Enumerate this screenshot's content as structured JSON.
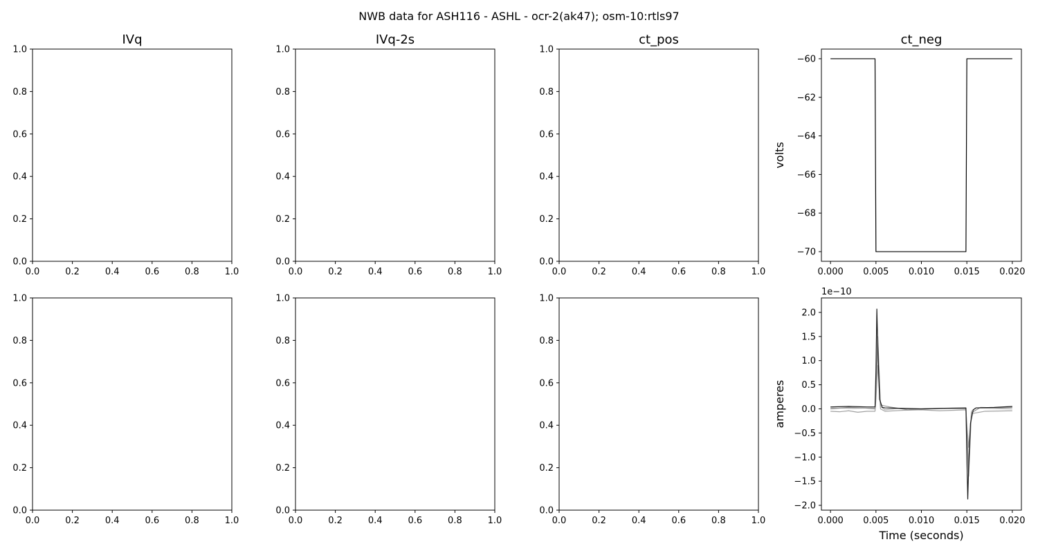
{
  "figure": {
    "suptitle": "NWB data for ASH116 - ASHL - ocr-2(ak47); osm-10:rtls97"
  },
  "chart_data": [
    {
      "id": "p00",
      "type": "line",
      "title": "IVq",
      "xlabel": "",
      "ylabel": "",
      "xlim": [
        0,
        1
      ],
      "ylim": [
        0,
        1
      ],
      "xticks": [
        "0.0",
        "0.2",
        "0.4",
        "0.6",
        "0.8",
        "1.0"
      ],
      "yticks": [
        "0.0",
        "0.2",
        "0.4",
        "0.6",
        "0.8",
        "1.0"
      ],
      "series": []
    },
    {
      "id": "p01",
      "type": "line",
      "title": "IVq-2s",
      "xlabel": "",
      "ylabel": "",
      "xlim": [
        0,
        1
      ],
      "ylim": [
        0,
        1
      ],
      "xticks": [
        "0.0",
        "0.2",
        "0.4",
        "0.6",
        "0.8",
        "1.0"
      ],
      "yticks": [
        "0.0",
        "0.2",
        "0.4",
        "0.6",
        "0.8",
        "1.0"
      ],
      "series": []
    },
    {
      "id": "p02",
      "type": "line",
      "title": "ct_pos",
      "xlabel": "",
      "ylabel": "",
      "xlim": [
        0,
        1
      ],
      "ylim": [
        0,
        1
      ],
      "xticks": [
        "0.0",
        "0.2",
        "0.4",
        "0.6",
        "0.8",
        "1.0"
      ],
      "yticks": [
        "0.0",
        "0.2",
        "0.4",
        "0.6",
        "0.8",
        "1.0"
      ],
      "series": []
    },
    {
      "id": "p03",
      "type": "line",
      "title": "ct_neg",
      "xlabel": "",
      "ylabel": "volts",
      "xlim": [
        -0.001,
        0.021
      ],
      "ylim": [
        -70.5,
        -59.5
      ],
      "xticks": [
        "0.000",
        "0.005",
        "0.010",
        "0.015",
        "0.020"
      ],
      "xtick_values": [
        0,
        0.005,
        0.01,
        0.015,
        0.02
      ],
      "yticks": [
        "−60",
        "−62",
        "−64",
        "−66",
        "−68",
        "−70"
      ],
      "ytick_values": [
        -60,
        -62,
        -64,
        -66,
        -68,
        -70
      ],
      "series": [
        {
          "color": "#000000",
          "x": [
            0,
            0.0049,
            0.005,
            0.0149,
            0.015,
            0.02
          ],
          "y": [
            -60,
            -60,
            -70,
            -70,
            -60,
            -60
          ]
        }
      ]
    },
    {
      "id": "p10",
      "type": "line",
      "title": "",
      "xlabel": "",
      "ylabel": "",
      "xlim": [
        0,
        1
      ],
      "ylim": [
        0,
        1
      ],
      "xticks": [
        "0.0",
        "0.2",
        "0.4",
        "0.6",
        "0.8",
        "1.0"
      ],
      "yticks": [
        "0.0",
        "0.2",
        "0.4",
        "0.6",
        "0.8",
        "1.0"
      ],
      "series": []
    },
    {
      "id": "p11",
      "type": "line",
      "title": "",
      "xlabel": "",
      "ylabel": "",
      "xlim": [
        0,
        1
      ],
      "ylim": [
        0,
        1
      ],
      "xticks": [
        "0.0",
        "0.2",
        "0.4",
        "0.6",
        "0.8",
        "1.0"
      ],
      "yticks": [
        "0.0",
        "0.2",
        "0.4",
        "0.6",
        "0.8",
        "1.0"
      ],
      "series": []
    },
    {
      "id": "p12",
      "type": "line",
      "title": "",
      "xlabel": "",
      "ylabel": "",
      "xlim": [
        0,
        1
      ],
      "ylim": [
        0,
        1
      ],
      "xticks": [
        "0.0",
        "0.2",
        "0.4",
        "0.6",
        "0.8",
        "1.0"
      ],
      "yticks": [
        "0.0",
        "0.2",
        "0.4",
        "0.6",
        "0.8",
        "1.0"
      ],
      "series": []
    },
    {
      "id": "p13",
      "type": "line",
      "title": "",
      "xlabel": "Time (seconds)",
      "ylabel": "amperes",
      "offset_text": "1e−10",
      "xlim": [
        -0.001,
        0.021
      ],
      "ylim": [
        -2.1,
        2.3
      ],
      "xticks": [
        "0.000",
        "0.005",
        "0.010",
        "0.015",
        "0.020"
      ],
      "xtick_values": [
        0,
        0.005,
        0.01,
        0.015,
        0.02
      ],
      "yticks": [
        "2.0",
        "1.5",
        "1.0",
        "0.5",
        "0.0",
        "−0.5",
        "−1.0",
        "−1.5",
        "−2.0"
      ],
      "ytick_values": [
        2.0,
        1.5,
        1.0,
        0.5,
        0.0,
        -0.5,
        -1.0,
        -1.5,
        -2.0
      ],
      "series": [
        {
          "color": "#b0b0b0",
          "x": [
            0,
            0.0025,
            0.0049,
            0.005,
            0.0052,
            0.0055,
            0.006,
            0.0075,
            0.01,
            0.0125,
            0.0149,
            0.015,
            0.0152,
            0.0155,
            0.016,
            0.0175,
            0.02
          ],
          "y": [
            0.02,
            0.01,
            0.02,
            0.3,
            1.2,
            0.05,
            -0.02,
            0.01,
            -0.01,
            0.01,
            0.0,
            -0.4,
            -1.1,
            -0.05,
            0.02,
            0.01,
            0.0
          ]
        },
        {
          "color": "#a0a0a0",
          "x": [
            0,
            0.001,
            0.002,
            0.003,
            0.004,
            0.0049,
            0.005,
            0.0052,
            0.0055,
            0.006,
            0.008,
            0.01,
            0.012,
            0.0149,
            0.015,
            0.0152,
            0.0155,
            0.017,
            0.02
          ],
          "y": [
            -0.05,
            -0.06,
            -0.04,
            -0.07,
            -0.05,
            -0.05,
            0.2,
            0.9,
            0.0,
            -0.05,
            -0.03,
            -0.02,
            -0.04,
            -0.02,
            -0.3,
            -0.8,
            -0.1,
            -0.05,
            -0.04
          ]
        },
        {
          "color": "#909090",
          "x": [
            0,
            0.002,
            0.0035,
            0.0049,
            0.005,
            0.0052,
            0.0055,
            0.0065,
            0.0085,
            0.01,
            0.0125,
            0.0149,
            0.015,
            0.0152,
            0.0155,
            0.0165,
            0.0185,
            0.02
          ],
          "y": [
            0.0,
            0.03,
            0.02,
            0.0,
            0.4,
            1.5,
            0.08,
            0.04,
            -0.02,
            0.0,
            0.01,
            0.01,
            -0.5,
            -1.4,
            -0.08,
            0.03,
            0.02,
            0.03
          ]
        },
        {
          "color": "#1a1a1a",
          "x": [
            0,
            0.002,
            0.004,
            0.0049,
            0.005,
            0.0051,
            0.0052,
            0.0054,
            0.0057,
            0.006,
            0.008,
            0.01,
            0.012,
            0.0149,
            0.015,
            0.0151,
            0.0152,
            0.0154,
            0.0157,
            0.016,
            0.018,
            0.02
          ],
          "y": [
            0.04,
            0.05,
            0.04,
            0.04,
            0.8,
            2.07,
            1.3,
            0.2,
            0.03,
            0.02,
            0.01,
            0.0,
            0.01,
            0.02,
            -1.0,
            -1.87,
            -1.2,
            -0.3,
            -0.02,
            0.02,
            0.03,
            0.05
          ]
        }
      ]
    }
  ]
}
